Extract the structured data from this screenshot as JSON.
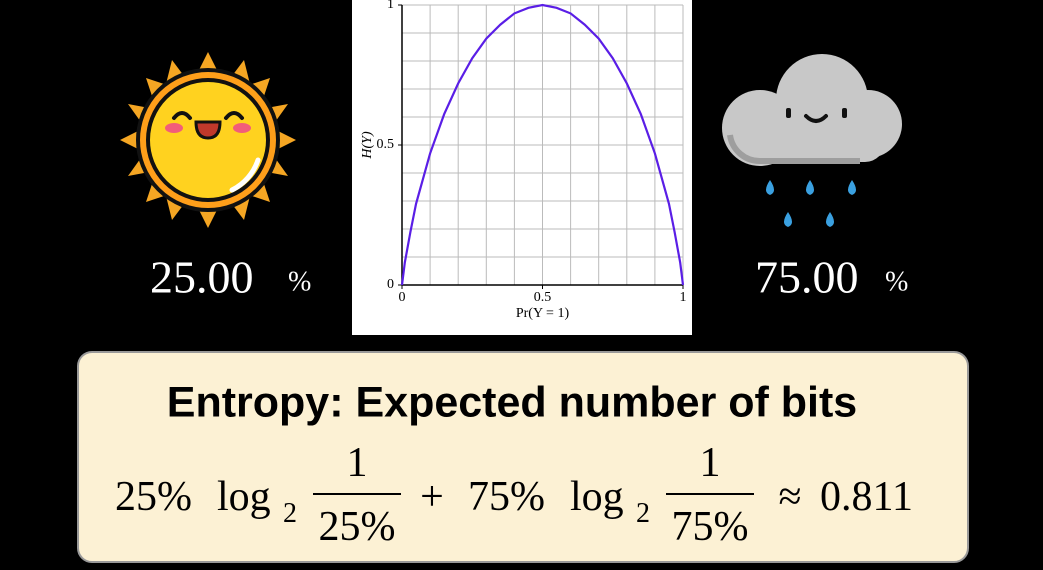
{
  "chart_data": {
    "type": "line",
    "xlabel": "Pr(Y = 1)",
    "ylabel": "H(Y)",
    "x": [
      0,
      0.01,
      0.03,
      0.05,
      0.1,
      0.15,
      0.2,
      0.25,
      0.3,
      0.35,
      0.4,
      0.45,
      0.5,
      0.55,
      0.6,
      0.65,
      0.7,
      0.75,
      0.8,
      0.85,
      0.9,
      0.95,
      0.97,
      0.99,
      1
    ],
    "series": [
      {
        "color": "#5a1ee6",
        "values": [
          0,
          0.08,
          0.19,
          0.29,
          0.47,
          0.61,
          0.72,
          0.81,
          0.88,
          0.93,
          0.97,
          0.99,
          1,
          0.99,
          0.97,
          0.93,
          0.88,
          0.81,
          0.72,
          0.61,
          0.47,
          0.29,
          0.19,
          0.08,
          0
        ]
      }
    ],
    "xlim": [
      0,
      1
    ],
    "ylim": [
      0,
      1
    ],
    "xticks": [
      0,
      0.5,
      1
    ],
    "yticks": [
      0,
      0.5,
      1
    ],
    "xgrid": [
      0.1,
      0.2,
      0.3,
      0.4,
      0.5,
      0.6,
      0.7,
      0.8,
      0.9,
      1
    ],
    "ygrid": [
      0.1,
      0.2,
      0.3,
      0.4,
      0.5,
      0.6,
      0.7,
      0.8,
      0.9,
      1
    ]
  },
  "sunny": {
    "number": "25.00",
    "unit": "%"
  },
  "rainy": {
    "number": "75.00",
    "unit": "%"
  },
  "box": {
    "title": "Entropy: Expected number of bits",
    "formula": {
      "terms": [
        {
          "coef": "25%",
          "log": "log",
          "base": "2",
          "numerator": "1",
          "denominator": "25%"
        },
        {
          "coef": "75%",
          "log": "log",
          "base": "2",
          "numerator": "1",
          "denominator": "75%"
        }
      ],
      "plus": "+",
      "approx": "≈",
      "result": "0.811"
    }
  }
}
